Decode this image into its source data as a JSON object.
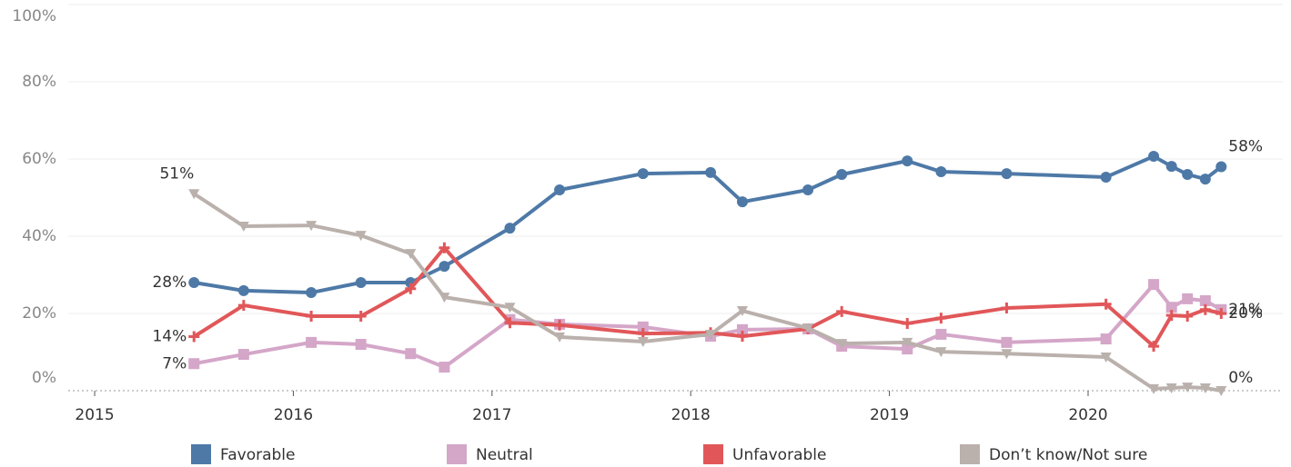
{
  "chart_data": {
    "type": "line",
    "x": [
      2015.5,
      2015.75,
      2016.09,
      2016.34,
      2016.59,
      2016.76,
      2017.09,
      2017.34,
      2017.76,
      2018.1,
      2018.26,
      2018.59,
      2018.76,
      2019.09,
      2019.26,
      2019.59,
      2020.09,
      2020.33,
      2020.42,
      2020.5,
      2020.59,
      2020.67
    ],
    "xlim": [
      2014.867,
      2020.98
    ],
    "xticks": [
      2015,
      2016,
      2017,
      2018,
      2019,
      2020
    ],
    "ylim": [
      0,
      100
    ],
    "yticks": [
      {
        "value": 0,
        "label": "0%"
      },
      {
        "value": 20,
        "label": "20%"
      },
      {
        "value": 40,
        "label": "40%"
      },
      {
        "value": 60,
        "label": "60%"
      },
      {
        "value": 80,
        "label": "80%"
      },
      {
        "value": 100,
        "label": "100%"
      }
    ],
    "grid": true,
    "series": [
      {
        "name": "Favorable",
        "color": "#4e79a7",
        "marker": "circle",
        "values": [
          28,
          25.9,
          25.4,
          28,
          28,
          32.2,
          42.1,
          52,
          56.2,
          56.5,
          48.9,
          52,
          56,
          59.5,
          56.7,
          56.2,
          55.3,
          60.7,
          58.1,
          56,
          54.8,
          58
        ],
        "value_labels": [
          "28%",
          null,
          null,
          null,
          null,
          null,
          null,
          null,
          null,
          null,
          null,
          null,
          null,
          null,
          null,
          null,
          null,
          null,
          null,
          null,
          null,
          "58%"
        ]
      },
      {
        "name": "Neutral",
        "color": "#d4a6c8",
        "marker": "square",
        "values": [
          7,
          9.4,
          12.5,
          12,
          9.6,
          6.1,
          18.4,
          17.2,
          16.5,
          14.1,
          15.8,
          16,
          11.5,
          10.8,
          14.6,
          12.5,
          13.4,
          27.5,
          21.6,
          23.8,
          23.3,
          21
        ],
        "value_labels": [
          "7%",
          null,
          null,
          null,
          null,
          null,
          null,
          null,
          null,
          null,
          null,
          null,
          null,
          null,
          null,
          null,
          null,
          null,
          null,
          null,
          null,
          "21%"
        ]
      },
      {
        "name": "Unfavorable",
        "color": "#e15759",
        "marker": "plus",
        "values": [
          14,
          22.1,
          19.3,
          19.3,
          26.4,
          37,
          17.6,
          17,
          14.8,
          15,
          14.1,
          16,
          20.5,
          17.4,
          18.8,
          21.4,
          22.4,
          11.5,
          19.5,
          19.3,
          21,
          20
        ],
        "value_labels": [
          "14%",
          null,
          null,
          null,
          null,
          null,
          null,
          null,
          null,
          null,
          null,
          null,
          null,
          null,
          null,
          null,
          null,
          null,
          null,
          null,
          null,
          "20%"
        ]
      },
      {
        "name": "Don’t know/Not sure",
        "color": "#bab0ac",
        "marker": "triangle",
        "values": [
          51,
          42.6,
          42.8,
          40.2,
          35.5,
          24.2,
          21.6,
          13.9,
          12.7,
          14.6,
          20.7,
          16.2,
          12.2,
          12.5,
          10.1,
          9.6,
          8.7,
          0.5,
          0.7,
          0.9,
          0.7,
          0
        ],
        "value_labels": [
          "51%",
          null,
          null,
          null,
          null,
          null,
          null,
          null,
          null,
          null,
          null,
          null,
          null,
          null,
          null,
          null,
          null,
          null,
          null,
          null,
          null,
          "0%"
        ]
      }
    ]
  }
}
